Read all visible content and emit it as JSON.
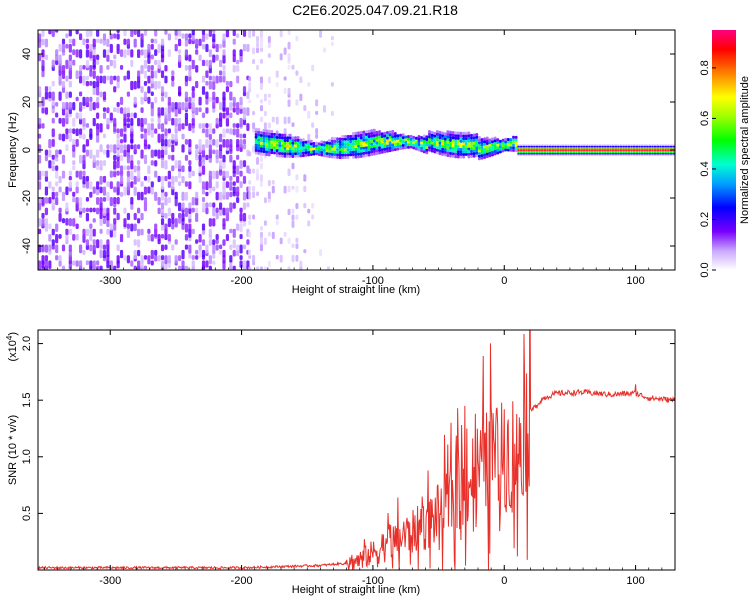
{
  "figure_title": "C2E6.2025.047.09.21.R18",
  "chart_data": [
    {
      "type": "heatmap",
      "xlabel": "Height of straight line (km)",
      "ylabel": "Frequency (Hz)",
      "xlim": [
        -355,
        130
      ],
      "ylim": [
        -50,
        50
      ],
      "xticks": [
        -300,
        -200,
        -100,
        0,
        100
      ],
      "yticks": [
        -40,
        -20,
        0,
        20,
        40
      ],
      "colorbar": {
        "label": "Normalized spectral amplitude",
        "range": [
          0,
          0.95
        ],
        "ticks": [
          "0.0",
          "0.2",
          "0.4",
          "0.6",
          "0.8"
        ],
        "colormap": "rainbow"
      },
      "regions": [
        {
          "x": [
            -355,
            -195
          ],
          "freq_spread_hz": 50,
          "amplitude": 0.15,
          "pattern": "broadband noise"
        },
        {
          "x": [
            -195,
            -130
          ],
          "freq_spread_hz": 50,
          "amplitude": 0.05,
          "pattern": "sparse noise"
        },
        {
          "x": [
            -190,
            10
          ],
          "freq_center_hz": 2,
          "freq_spread_hz": 6,
          "amplitude": 0.6,
          "pattern": "signal band"
        },
        {
          "x": [
            10,
            130
          ],
          "freq_center_hz": 0,
          "freq_spread_hz": 3,
          "amplitude": 0.95,
          "pattern": "narrow stable tone"
        }
      ]
    },
    {
      "type": "line",
      "xlabel": "Height of straight line (km)",
      "ylabel": "SNR (10 * v/v)",
      "multiplier_label": "(x10",
      "multiplier_exp": "4",
      "multiplier_close": ")",
      "xlim": [
        -355,
        130
      ],
      "ylim": [
        0,
        2.12
      ],
      "xticks": [
        -300,
        -200,
        -100,
        0,
        100
      ],
      "yticks": [
        "0.5",
        "1.0",
        "1.5",
        "2.0"
      ],
      "line_color": "#e8302a",
      "series": [
        {
          "x": [
            -355,
            -300,
            -250,
            -200,
            -170,
            -140,
            -120,
            -110,
            -100,
            -90,
            -80,
            -70,
            -60,
            -50,
            -40,
            -30,
            -20,
            -10,
            0,
            5,
            10,
            15,
            20,
            30,
            40,
            60,
            80,
            100,
            110,
            130
          ],
          "y": [
            0.02,
            0.02,
            0.02,
            0.02,
            0.03,
            0.04,
            0.06,
            0.09,
            0.15,
            0.22,
            0.28,
            0.33,
            0.4,
            0.5,
            0.62,
            0.75,
            0.88,
            0.98,
            1.0,
            1.05,
            1.1,
            1.25,
            1.4,
            1.52,
            1.56,
            1.57,
            1.55,
            1.56,
            1.52,
            1.5
          ]
        }
      ],
      "spikes": [
        {
          "x": -90,
          "y": 0.28
        },
        {
          "x": -75,
          "y": 0.33
        },
        {
          "x": -62,
          "y": 0.55
        },
        {
          "x": -48,
          "y": 0.72
        },
        {
          "x": -44,
          "y": 0.85
        },
        {
          "x": -35,
          "y": 1.08
        },
        {
          "x": -30,
          "y": 1.45
        },
        {
          "x": -22,
          "y": 1.38
        },
        {
          "x": -15,
          "y": 1.2
        },
        {
          "x": -10,
          "y": 1.45
        },
        {
          "x": -5,
          "y": 1.28
        },
        {
          "x": 0,
          "y": 1.42
        },
        {
          "x": 10,
          "y": 2.12
        },
        {
          "x": 100,
          "y": 1.64
        }
      ],
      "dips": [
        {
          "x": 10,
          "y": 0.12
        },
        {
          "x": 5,
          "y": 0.55
        },
        {
          "x": -3,
          "y": 0.5
        }
      ]
    }
  ]
}
